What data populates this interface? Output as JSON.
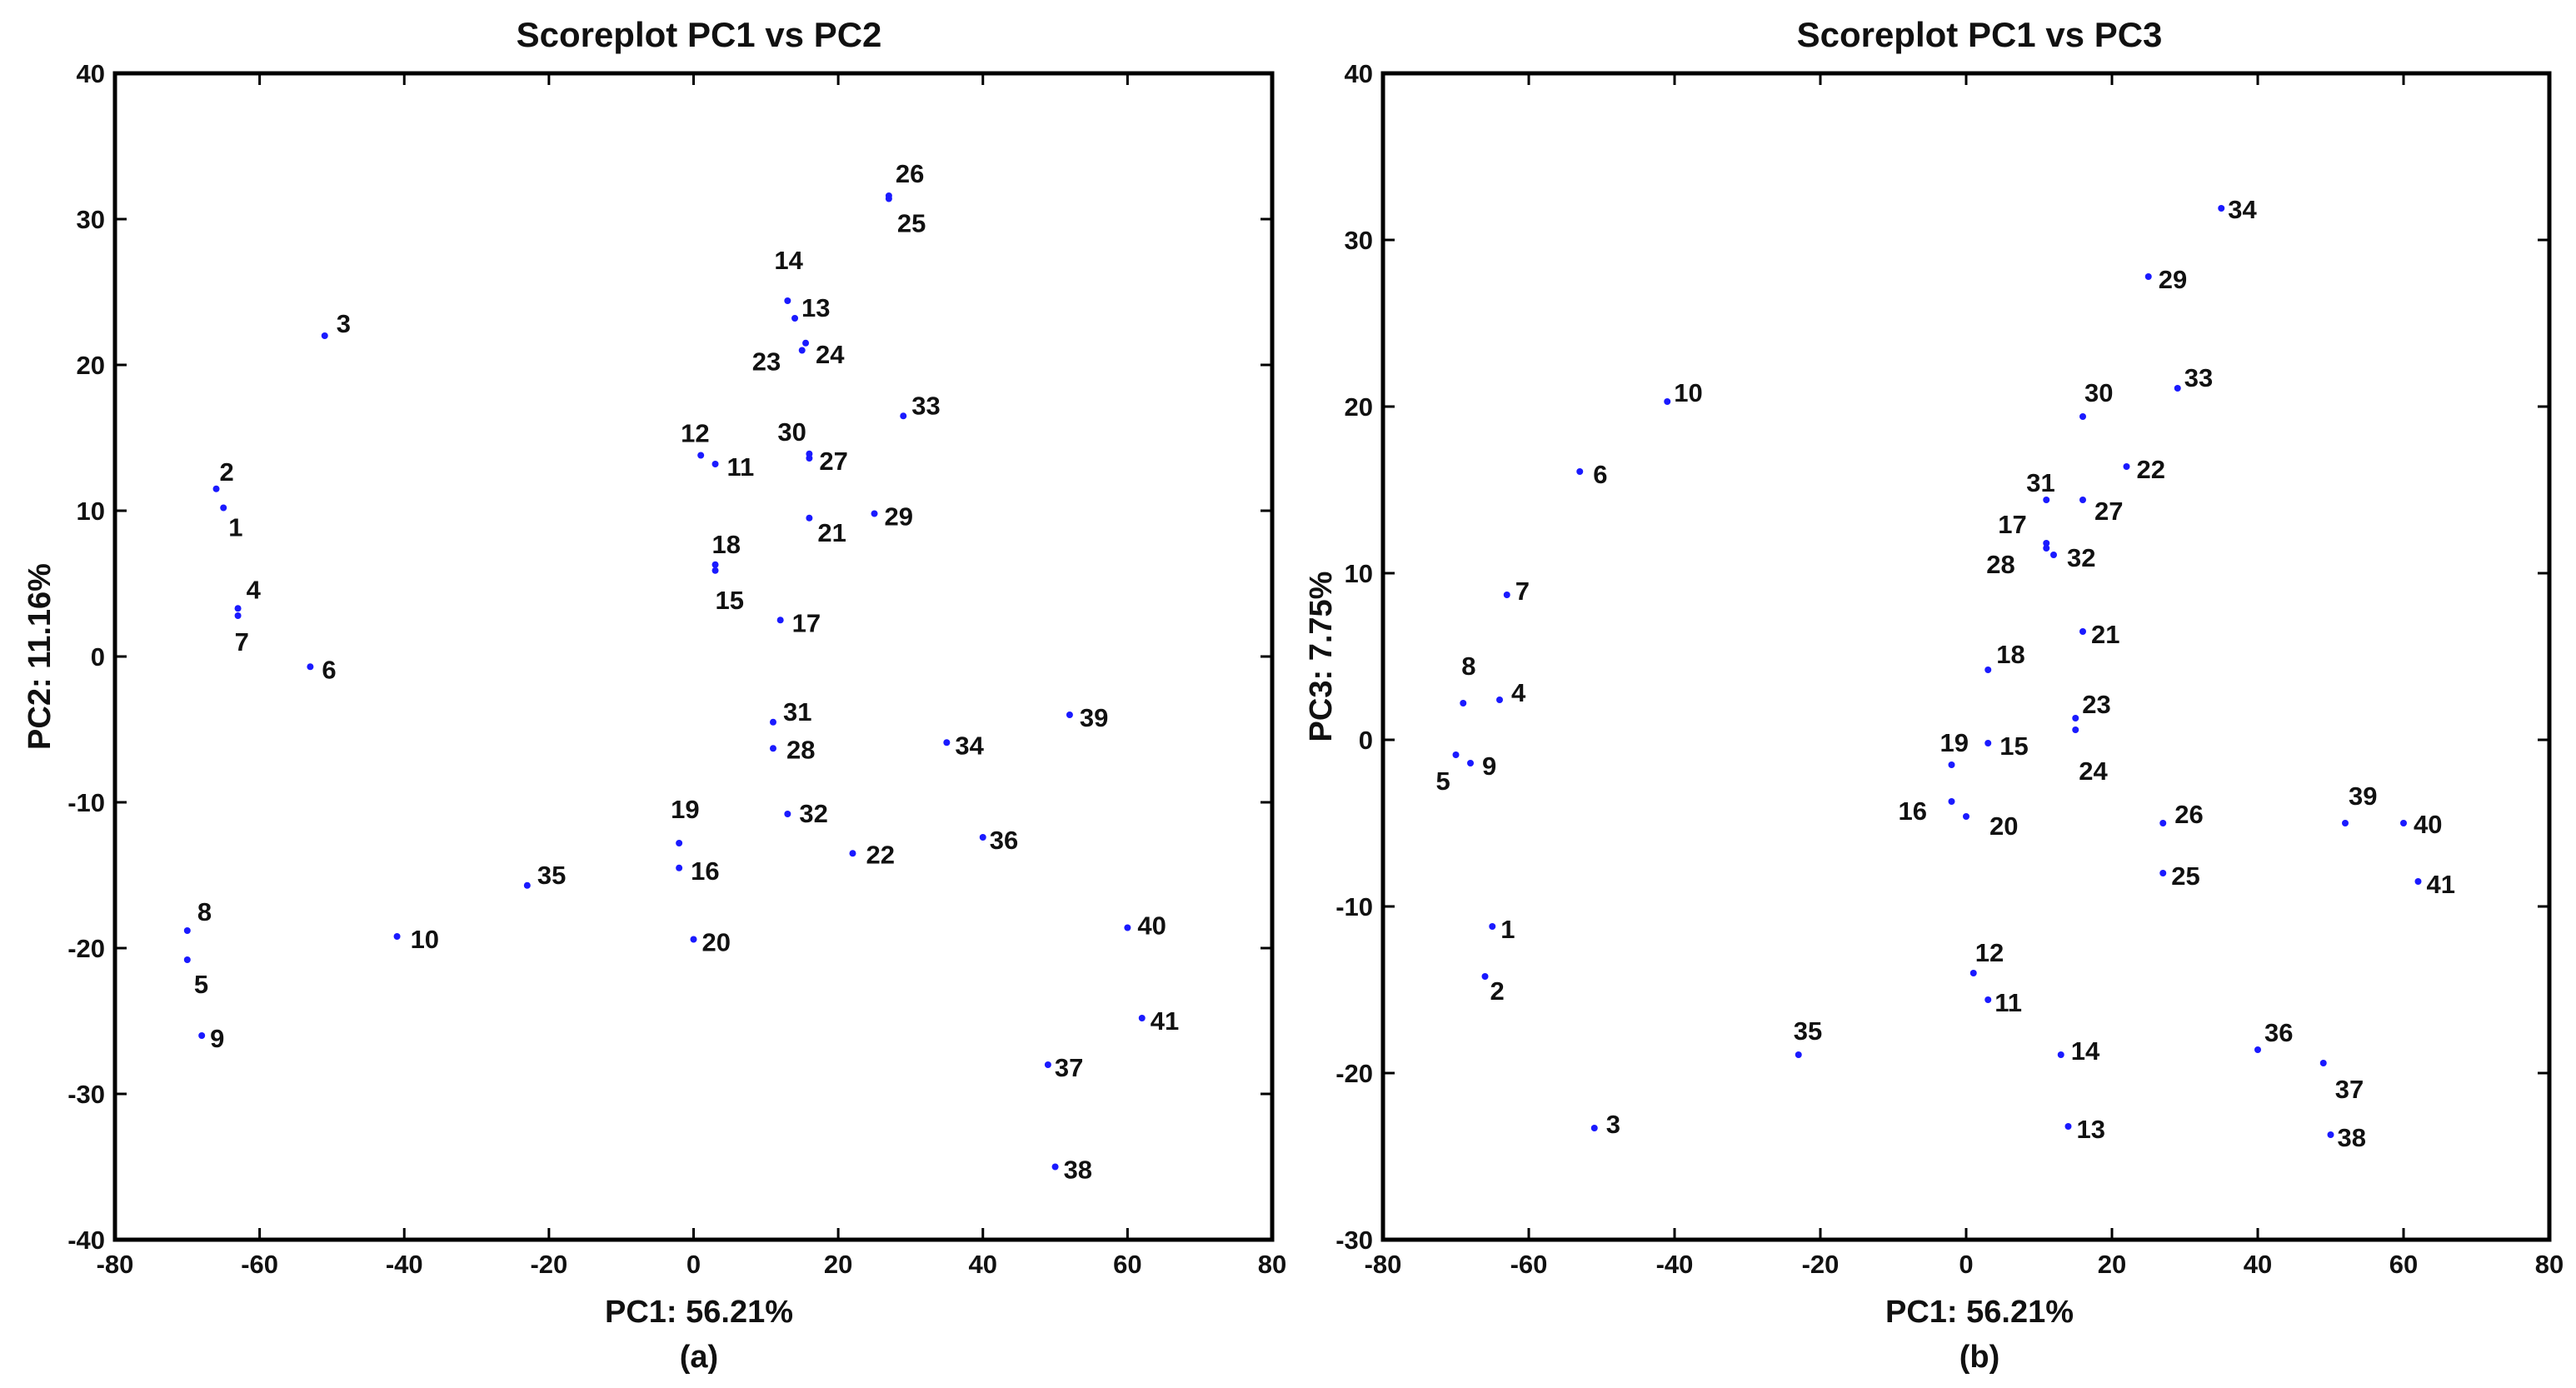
{
  "chart_data": [
    {
      "type": "scatter",
      "title": "Scoreplot PC1 vs PC2",
      "xlabel": "PC1: 56.21%",
      "ylabel": "PC2: 11.16%",
      "caption": "(a)",
      "xlim": [
        -80,
        80
      ],
      "ylim": [
        -40,
        40
      ],
      "xticks": [
        -80,
        -60,
        -40,
        -20,
        0,
        20,
        40,
        60,
        80
      ],
      "yticks": [
        -40,
        -30,
        -20,
        -10,
        0,
        10,
        20,
        30,
        40
      ],
      "marker_color": "#1a1aff",
      "points": [
        {
          "label": "1",
          "x": -65,
          "y": 10.2
        },
        {
          "label": "2",
          "x": -66,
          "y": 11.5
        },
        {
          "label": "3",
          "x": -51,
          "y": 22
        },
        {
          "label": "4",
          "x": -63,
          "y": 3.3
        },
        {
          "label": "5",
          "x": -70,
          "y": -20.8
        },
        {
          "label": "6",
          "x": -53,
          "y": -0.7
        },
        {
          "label": "7",
          "x": -63,
          "y": 2.8
        },
        {
          "label": "8",
          "x": -70,
          "y": -18.8
        },
        {
          "label": "9",
          "x": -68,
          "y": -26
        },
        {
          "label": "10",
          "x": -41,
          "y": -19.2
        },
        {
          "label": "11",
          "x": 3,
          "y": 13.2
        },
        {
          "label": "12",
          "x": 1,
          "y": 13.8
        },
        {
          "label": "13",
          "x": 14,
          "y": 23.2
        },
        {
          "label": "14",
          "x": 13,
          "y": 24.4
        },
        {
          "label": "15",
          "x": 3,
          "y": 5.9
        },
        {
          "label": "16",
          "x": -2,
          "y": -14.5
        },
        {
          "label": "17",
          "x": 12,
          "y": 2.5
        },
        {
          "label": "18",
          "x": 3,
          "y": 6.3
        },
        {
          "label": "19",
          "x": -2,
          "y": -12.8
        },
        {
          "label": "20",
          "x": 0,
          "y": -19.4
        },
        {
          "label": "21",
          "x": 16,
          "y": 9.5
        },
        {
          "label": "22",
          "x": 22,
          "y": -13.5
        },
        {
          "label": "23",
          "x": 15,
          "y": 21
        },
        {
          "label": "24",
          "x": 15.5,
          "y": 21.5
        },
        {
          "label": "25",
          "x": 27,
          "y": 31.4
        },
        {
          "label": "26",
          "x": 27,
          "y": 31.6
        },
        {
          "label": "27",
          "x": 16,
          "y": 13.6
        },
        {
          "label": "28",
          "x": 11,
          "y": -6.3
        },
        {
          "label": "29",
          "x": 25,
          "y": 9.8
        },
        {
          "label": "30",
          "x": 16,
          "y": 13.9
        },
        {
          "label": "31",
          "x": 11,
          "y": -4.5
        },
        {
          "label": "32",
          "x": 13,
          "y": -10.8
        },
        {
          "label": "33",
          "x": 29,
          "y": 16.5
        },
        {
          "label": "34",
          "x": 35,
          "y": -5.9
        },
        {
          "label": "35",
          "x": -23,
          "y": -15.7
        },
        {
          "label": "36",
          "x": 40,
          "y": -12.4
        },
        {
          "label": "37",
          "x": 49,
          "y": -28
        },
        {
          "label": "38",
          "x": 50,
          "y": -35
        },
        {
          "label": "39",
          "x": 52,
          "y": -4
        },
        {
          "label": "40",
          "x": 60,
          "y": -18.6
        },
        {
          "label": "41",
          "x": 62,
          "y": -24.8
        }
      ]
    },
    {
      "type": "scatter",
      "title": "Scoreplot PC1 vs  PC3",
      "xlabel": "PC1: 56.21%",
      "ylabel": "PC3: 7.75%",
      "caption": "(b)",
      "xlim": [
        -80,
        80
      ],
      "ylim": [
        -30,
        40
      ],
      "xticks": [
        -80,
        -60,
        -40,
        -20,
        0,
        20,
        40,
        60,
        80
      ],
      "yticks": [
        -30,
        -20,
        -10,
        0,
        10,
        20,
        30,
        40
      ],
      "marker_color": "#1a1aff",
      "points": [
        {
          "label": "1",
          "x": -65,
          "y": -11.2
        },
        {
          "label": "2",
          "x": -66,
          "y": -14.2
        },
        {
          "label": "3",
          "x": -51,
          "y": -23.3
        },
        {
          "label": "4",
          "x": -64,
          "y": 2.4
        },
        {
          "label": "5",
          "x": -70,
          "y": -0.9
        },
        {
          "label": "6",
          "x": -53,
          "y": 16.1
        },
        {
          "label": "7",
          "x": -63,
          "y": 8.7
        },
        {
          "label": "8",
          "x": -69,
          "y": 2.2
        },
        {
          "label": "9",
          "x": -68,
          "y": -1.4
        },
        {
          "label": "10",
          "x": -41,
          "y": 20.3
        },
        {
          "label": "11",
          "x": 3,
          "y": -15.6
        },
        {
          "label": "12",
          "x": 1,
          "y": -14
        },
        {
          "label": "13",
          "x": 14,
          "y": -23.2
        },
        {
          "label": "14",
          "x": 13,
          "y": -18.9
        },
        {
          "label": "15",
          "x": 3,
          "y": -0.2
        },
        {
          "label": "16",
          "x": -2,
          "y": -3.7
        },
        {
          "label": "17",
          "x": 11,
          "y": 11.8
        },
        {
          "label": "18",
          "x": 3,
          "y": 4.2
        },
        {
          "label": "19",
          "x": -2,
          "y": -1.5
        },
        {
          "label": "20",
          "x": 0,
          "y": -4.6
        },
        {
          "label": "21",
          "x": 16,
          "y": 6.5
        },
        {
          "label": "22",
          "x": 22,
          "y": 16.4
        },
        {
          "label": "23",
          "x": 15,
          "y": 1.3
        },
        {
          "label": "24",
          "x": 15,
          "y": 0.6
        },
        {
          "label": "25",
          "x": 27,
          "y": -8
        },
        {
          "label": "26",
          "x": 27,
          "y": -5
        },
        {
          "label": "27",
          "x": 16,
          "y": 14.4
        },
        {
          "label": "28",
          "x": 11,
          "y": 11.5
        },
        {
          "label": "29",
          "x": 25,
          "y": 27.8
        },
        {
          "label": "30",
          "x": 16,
          "y": 19.4
        },
        {
          "label": "31",
          "x": 11,
          "y": 14.4
        },
        {
          "label": "32",
          "x": 12,
          "y": 11.1
        },
        {
          "label": "33",
          "x": 29,
          "y": 21.1
        },
        {
          "label": "34",
          "x": 35,
          "y": 31.9
        },
        {
          "label": "35",
          "x": -23,
          "y": -18.9
        },
        {
          "label": "36",
          "x": 40,
          "y": -18.6
        },
        {
          "label": "37",
          "x": 49,
          "y": -19.4
        },
        {
          "label": "38",
          "x": 50,
          "y": -23.7
        },
        {
          "label": "39",
          "x": 52,
          "y": -5
        },
        {
          "label": "40",
          "x": 60,
          "y": -5
        },
        {
          "label": "41",
          "x": 62,
          "y": -8.5
        }
      ]
    }
  ]
}
